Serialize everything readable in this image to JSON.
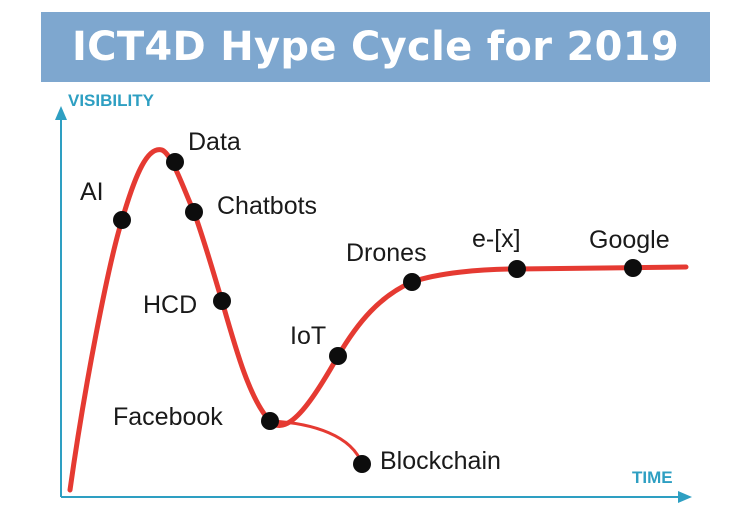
{
  "title": "ICT4D Hype Cycle for 2019",
  "axes": {
    "y_label": "VISIBILITY",
    "x_label": "TIME"
  },
  "colors": {
    "banner": "#7ea7cf",
    "title_text": "#ffffff",
    "axis": "#2e9fc2",
    "curve": "#e53a32",
    "dot": "#0d0d0d"
  },
  "points": [
    {
      "id": "ai",
      "label": "AI"
    },
    {
      "id": "data",
      "label": "Data"
    },
    {
      "id": "chatbots",
      "label": "Chatbots"
    },
    {
      "id": "hcd",
      "label": "HCD"
    },
    {
      "id": "facebook",
      "label": "Facebook"
    },
    {
      "id": "iot",
      "label": "IoT"
    },
    {
      "id": "drones",
      "label": "Drones"
    },
    {
      "id": "ex",
      "label": "e-[x]"
    },
    {
      "id": "google",
      "label": "Google"
    },
    {
      "id": "blockchain",
      "label": "Blockchain"
    }
  ]
}
